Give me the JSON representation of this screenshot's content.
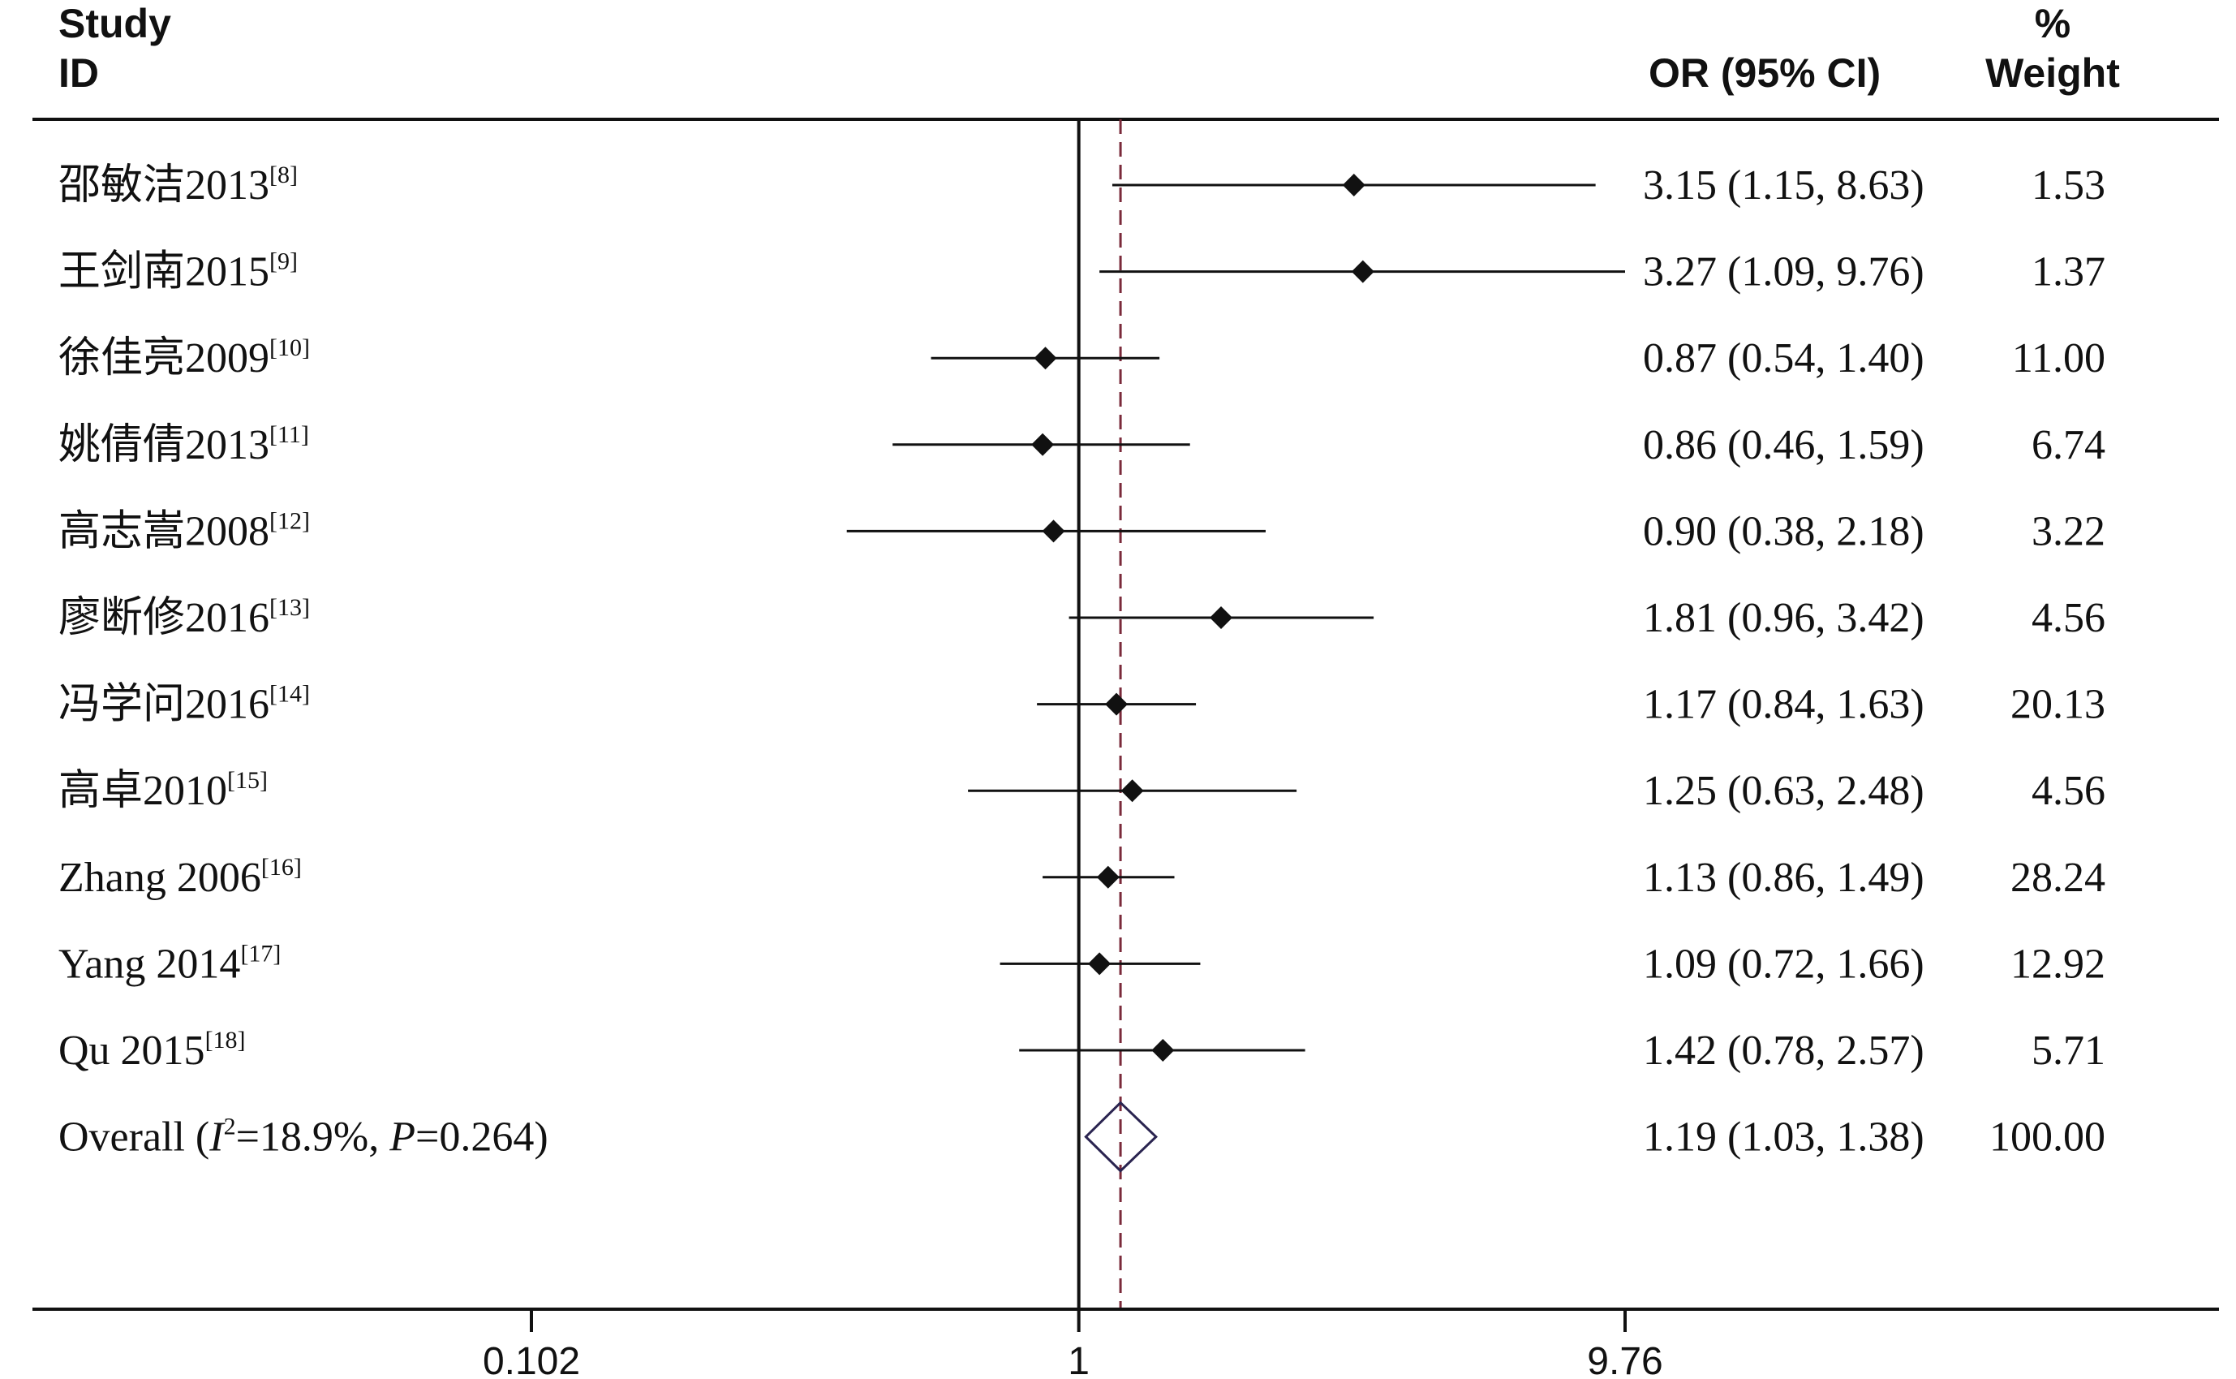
{
  "header": {
    "study_line1": "Study",
    "study_line2": "ID",
    "or_label": "OR (95% CI)",
    "weight_line1": "%",
    "weight_line2": "Weight"
  },
  "chart_data": {
    "type": "forest",
    "scale": "log",
    "x_ticks": [
      {
        "value": 0.102,
        "label": "0.102"
      },
      {
        "value": 1,
        "label": "1"
      },
      {
        "value": 9.76,
        "label": "9.76"
      }
    ],
    "xlim": [
      0.102,
      9.76
    ],
    "null_line": 1,
    "overall_line": 1.19,
    "studies": [
      {
        "name": "邵敏洁2013",
        "ref": "[8]",
        "or": 3.15,
        "lo": 1.15,
        "hi": 8.63,
        "or_text": "3.15 (1.15, 8.63)",
        "weight": "1.53"
      },
      {
        "name": "王剑南2015",
        "ref": "[9]",
        "or": 3.27,
        "lo": 1.09,
        "hi": 9.76,
        "or_text": "3.27 (1.09, 9.76)",
        "weight": "1.37"
      },
      {
        "name": "徐佳亮2009",
        "ref": "[10]",
        "or": 0.87,
        "lo": 0.54,
        "hi": 1.4,
        "or_text": "0.87 (0.54, 1.40)",
        "weight": "11.00"
      },
      {
        "name": "姚倩倩2013",
        "ref": "[11]",
        "or": 0.86,
        "lo": 0.46,
        "hi": 1.59,
        "or_text": "0.86 (0.46, 1.59)",
        "weight": "6.74"
      },
      {
        "name": "高志嵩2008",
        "ref": "[12]",
        "or": 0.9,
        "lo": 0.38,
        "hi": 2.18,
        "or_text": "0.90 (0.38, 2.18)",
        "weight": "3.22"
      },
      {
        "name": "廖断修2016",
        "ref": "[13]",
        "or": 1.81,
        "lo": 0.96,
        "hi": 3.42,
        "or_text": "1.81 (0.96, 3.42)",
        "weight": "4.56"
      },
      {
        "name": "冯学问2016",
        "ref": "[14]",
        "or": 1.17,
        "lo": 0.84,
        "hi": 1.63,
        "or_text": "1.17 (0.84, 1.63)",
        "weight": "20.13"
      },
      {
        "name": "高卓2010",
        "ref": "[15]",
        "or": 1.25,
        "lo": 0.63,
        "hi": 2.48,
        "or_text": "1.25 (0.63, 2.48)",
        "weight": "4.56"
      },
      {
        "name": "Zhang 2006",
        "ref": "[16]",
        "or": 1.13,
        "lo": 0.86,
        "hi": 1.49,
        "or_text": "1.13 (0.86, 1.49)",
        "weight": "28.24"
      },
      {
        "name": "Yang 2014",
        "ref": "[17]",
        "or": 1.09,
        "lo": 0.72,
        "hi": 1.66,
        "or_text": "1.09 (0.72, 1.66)",
        "weight": "12.92"
      },
      {
        "name": "Qu 2015",
        "ref": "[18]",
        "or": 1.42,
        "lo": 0.78,
        "hi": 2.57,
        "or_text": "1.42 (0.78, 2.57)",
        "weight": "5.71"
      }
    ],
    "overall": {
      "label_prefix": "Overall  (",
      "i2_symbol": "I",
      "i2_sup": "2",
      "i2_value": "=18.9%, ",
      "p_symbol": "P",
      "p_value": "=0.264)",
      "or": 1.19,
      "lo": 1.03,
      "hi": 1.38,
      "or_text": "1.19 (1.03, 1.38)",
      "weight": "100.00"
    },
    "colors": {
      "marker": "#111111",
      "overall_diamond": "#2a2450",
      "overall_line": "#7a2a3a"
    }
  }
}
